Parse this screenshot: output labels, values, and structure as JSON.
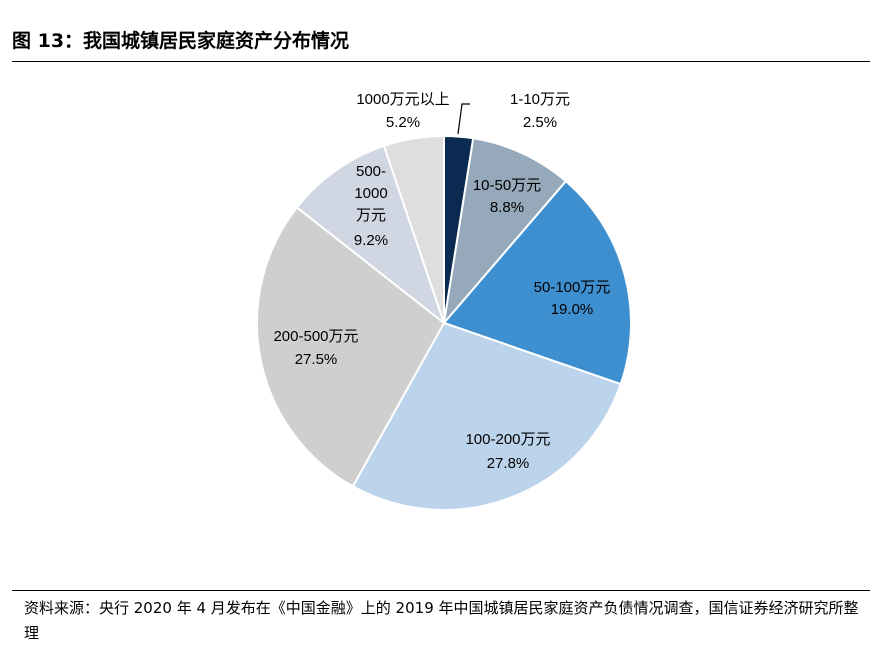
{
  "figure": {
    "title": "图 13：我国城镇居民家庭资产分布情况",
    "source": "资料来源：央行 2020 年 4 月发布在《中国金融》上的 2019 年中国城镇居民家庭资产负债情况调查，国信证券经济研究所整理"
  },
  "chart_data": {
    "type": "pie",
    "title": "",
    "start_angle_deg": 0,
    "direction": "clockwise",
    "slices": [
      {
        "label": "1-10万元",
        "value": 2.5,
        "value_label": "2.5%",
        "color": "#0a2a52"
      },
      {
        "label": "10-50万元",
        "value": 8.8,
        "value_label": "8.8%",
        "color": "#95a9ba"
      },
      {
        "label": "50-100万元",
        "value": 19.0,
        "value_label": "19.0%",
        "color": "#3e8fd0"
      },
      {
        "label": "100-200万元",
        "value": 27.8,
        "value_label": "27.8%",
        "color": "#bcd3ec"
      },
      {
        "label": "200-500万元",
        "value": 27.5,
        "value_label": "27.5%",
        "color": "#cfcfcf"
      },
      {
        "label": "500-1000万元",
        "value": 9.2,
        "value_label": "9.2%",
        "color": "#d0d7e2"
      },
      {
        "label": "1000万元以上",
        "value": 5.2,
        "value_label": "5.2%",
        "color": "#dedede"
      }
    ]
  }
}
